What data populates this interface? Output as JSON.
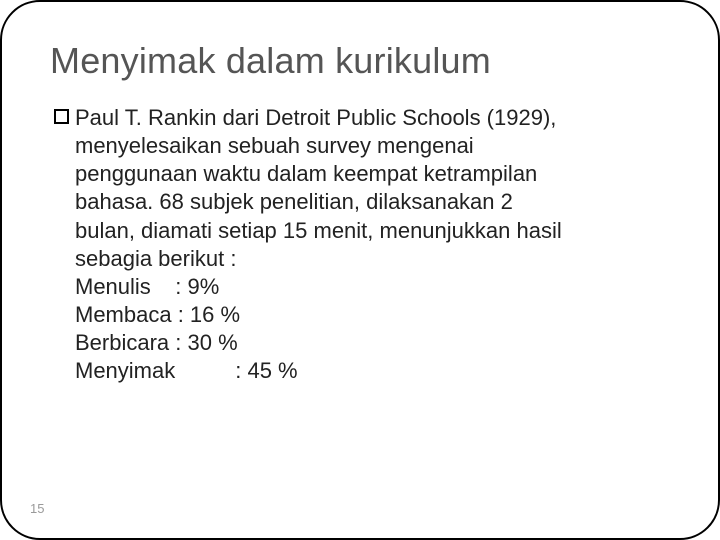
{
  "title": "Menyimak dalam kurikulum",
  "lead": "Paul T. Rankin dari Detroit Public Schools (1929),",
  "body_lines": [
    "menyelesaikan sebuah survey mengenai",
    "penggunaan waktu dalam keempat ketrampilan",
    "bahasa. 68 subjek penelitian, dilaksanakan 2",
    "bulan, diamati setiap 15 menit, menunjukkan hasil",
    "sebagia berikut :"
  ],
  "stats": [
    {
      "label": "Menulis    : 9%"
    },
    {
      "label": "Membaca : 16 %"
    },
    {
      "label": "Berbicara : 30 %"
    },
    {
      "label": "Menyimak",
      "value": ": 45 %",
      "wide": true
    }
  ],
  "page_number": "15"
}
